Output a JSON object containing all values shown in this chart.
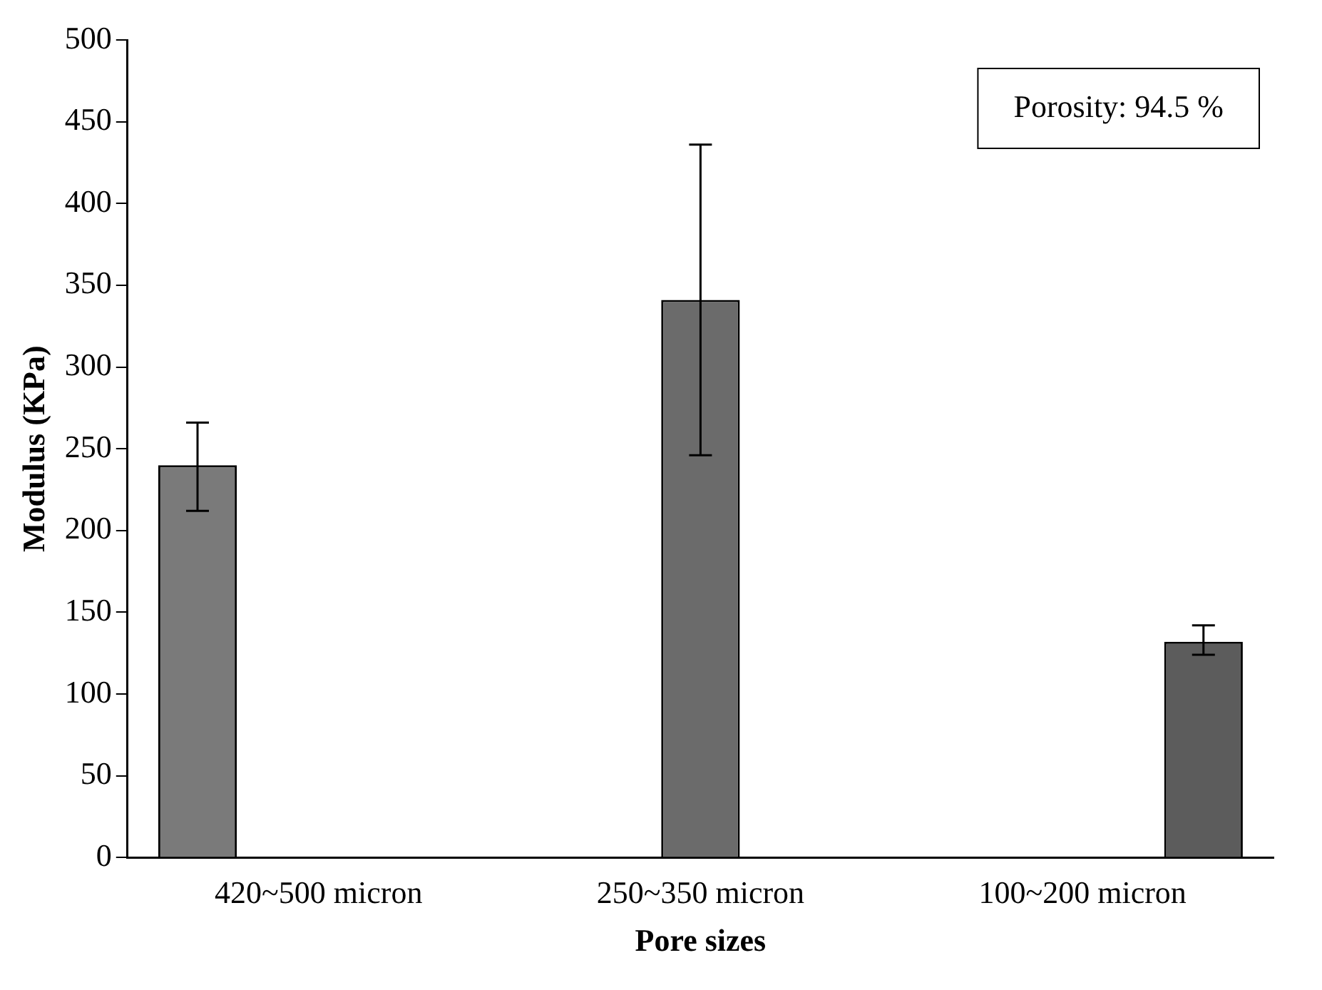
{
  "chart_data": {
    "type": "bar",
    "xlabel": "Pore sizes",
    "ylabel": "Modulus (KPa)",
    "categories": [
      "420~500 micron",
      "250~350 micron",
      "100~200 micron"
    ],
    "series": [
      {
        "color": "#7a7a7a",
        "values": [
          240,
          null,
          null
        ],
        "errors": [
          [
            212,
            266
          ],
          null,
          null
        ]
      },
      {
        "color": "#6b6b6b",
        "values": [
          null,
          341,
          null
        ],
        "errors": [
          null,
          [
            246,
            436
          ],
          null
        ]
      },
      {
        "color": "#5c5c5c",
        "values": [
          null,
          null,
          132
        ],
        "errors": [
          null,
          null,
          [
            124,
            142
          ]
        ]
      }
    ],
    "ylim": [
      0,
      500
    ],
    "yticks": [
      0,
      50,
      100,
      150,
      200,
      250,
      300,
      350,
      400,
      450,
      500
    ],
    "grid": false,
    "legend": false,
    "annotations": [
      "Porosity: 94.5 %"
    ]
  }
}
